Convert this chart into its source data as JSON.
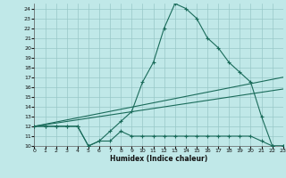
{
  "background_color": "#c0e8e8",
  "grid_color": "#98c8c8",
  "line_color": "#1a6b5a",
  "xlabel": "Humidex (Indice chaleur)",
  "xlim": [
    0,
    23
  ],
  "ylim": [
    10,
    24.5
  ],
  "xticks": [
    0,
    1,
    2,
    3,
    4,
    5,
    6,
    7,
    8,
    9,
    10,
    11,
    12,
    13,
    14,
    15,
    16,
    17,
    18,
    19,
    20,
    21,
    22,
    23
  ],
  "yticks": [
    10,
    11,
    12,
    13,
    14,
    15,
    16,
    17,
    18,
    19,
    20,
    21,
    22,
    23,
    24
  ],
  "curve1_x": [
    0,
    1,
    2,
    3,
    4,
    5,
    6,
    7,
    8,
    9,
    10,
    11,
    12,
    13,
    14,
    15,
    16,
    17,
    18,
    19,
    20,
    21,
    22,
    23
  ],
  "curve1_y": [
    12,
    12,
    12,
    12,
    12,
    10,
    10.5,
    11.5,
    12.5,
    13.5,
    16.5,
    18.5,
    22,
    24.5,
    24,
    23,
    21,
    20,
    18.5,
    17.5,
    16.5,
    13,
    10,
    10
  ],
  "curve2_x": [
    0,
    1,
    2,
    3,
    4,
    5,
    6,
    7,
    8,
    9,
    10,
    11,
    12,
    13,
    14,
    15,
    16,
    17,
    18,
    19,
    20,
    21,
    22,
    23
  ],
  "curve2_y": [
    12,
    12,
    12,
    12,
    12,
    10,
    10.5,
    10.5,
    11.5,
    11,
    11,
    11,
    11,
    11,
    11,
    11,
    11,
    11,
    11,
    11,
    11,
    10.5,
    10,
    10
  ],
  "line1_x": [
    0,
    23
  ],
  "line1_y": [
    12,
    17.0
  ],
  "line2_x": [
    0,
    23
  ],
  "line2_y": [
    12,
    15.8
  ]
}
